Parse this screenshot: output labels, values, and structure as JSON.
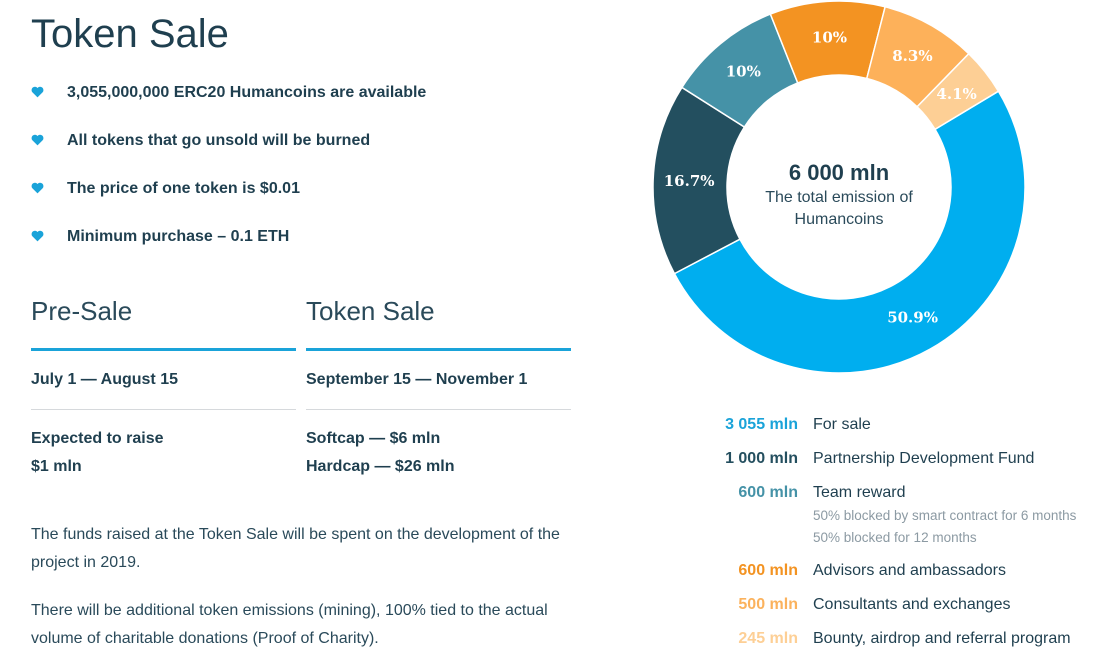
{
  "title": "Token Sale",
  "bullets": [
    "3,055,000,000 ERC20 Humancoins are available",
    "All tokens that go unsold will be burned",
    "The price of one token is $0.01",
    "Minimum purchase – 0.1 ETH"
  ],
  "presale": {
    "heading": "Pre-Sale",
    "dates": "July 1 — August 15",
    "line1": "Expected to raise",
    "line2": "$1 mln"
  },
  "tokensale": {
    "heading": "Token Sale",
    "dates": "September 15 — November 1",
    "line1": "Softcap — $6 mln",
    "line2": "Hardcap — $26 mln"
  },
  "paragraphs": [
    "The funds raised at the Token Sale will be spent on the development of the project in 2019.",
    "There will be additional token emissions (mining), 100% tied to the actual volume of charitable donations (Proof of Charity)."
  ],
  "donut_center": {
    "value": "6 000 mln",
    "caption_line1": "The total emission of",
    "caption_line2": "Humancoins"
  },
  "legend": [
    {
      "amount": "3 055 mln",
      "label": "For sale",
      "color": "#1aa3d9"
    },
    {
      "amount": "1 000 mln",
      "label": "Partnership Development Fund",
      "color": "#244f5f"
    },
    {
      "amount": "600 mln",
      "label": "Team reward",
      "color": "#4592a7",
      "notes": [
        "50% blocked by smart contract for 6 months",
        "50% blocked for 12 months"
      ]
    },
    {
      "amount": "600 mln",
      "label": "Advisors and ambassadors",
      "color": "#f39322"
    },
    {
      "amount": "500 mln",
      "label": "Consultants and exchanges",
      "color": "#fbb25d"
    },
    {
      "amount": "245 mln",
      "label": "Bounty, airdrop and referral program",
      "color": "#fdcf95"
    }
  ],
  "chart_data": {
    "type": "pie",
    "categories": [
      "For sale",
      "Partnership Development Fund",
      "Team reward",
      "Advisors and ambassadors",
      "Consultants and exchanges",
      "Bounty, airdrop and referral program"
    ],
    "values": [
      50.9,
      16.7,
      10,
      10,
      8.3,
      4.1
    ],
    "labels": [
      "50.9%",
      "16.7%",
      "10%",
      "10%",
      "8.3%",
      "4.1%"
    ],
    "colors": [
      "#00aeef",
      "#234f5f",
      "#4592a7",
      "#f39322",
      "#fdb15a",
      "#fdcf95"
    ]
  }
}
